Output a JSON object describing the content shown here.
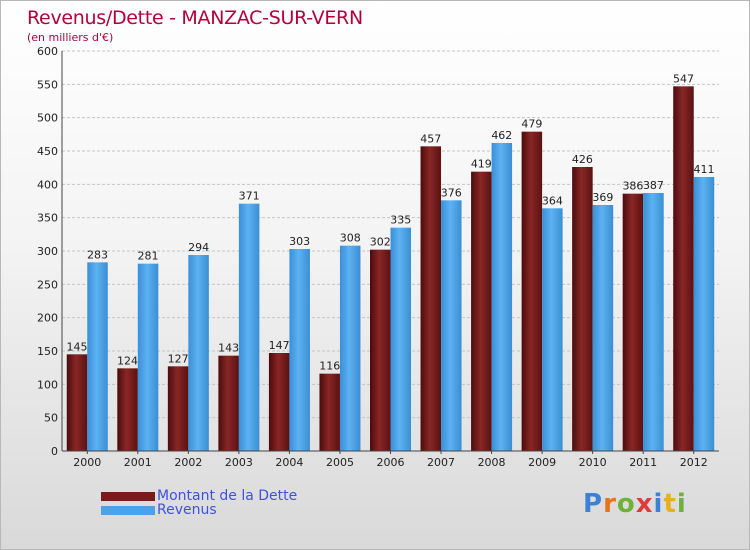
{
  "title": "Revenus/Dette - MANZAC-SUR-VERN",
  "subtitle": "(en milliers d'€)",
  "colors": {
    "dette": "#7a1a1a",
    "revenus": "#4aa3e8",
    "title": "#b3003a",
    "legend_text": "#3f51e0"
  },
  "legend": [
    {
      "name": "Montant de la Dette",
      "color": "#7a1a1a"
    },
    {
      "name": "Revenus",
      "color": "#4aa3e8"
    }
  ],
  "logo": {
    "text": "Proxiti"
  },
  "chart_data": {
    "type": "bar",
    "title": "Revenus/Dette - MANZAC-SUR-VERN",
    "subtitle": "(en milliers d'€)",
    "xlabel": "",
    "ylabel": "",
    "ylim": [
      0,
      600
    ],
    "yticks": [
      0,
      50,
      100,
      150,
      200,
      250,
      300,
      350,
      400,
      450,
      500,
      550,
      600
    ],
    "grid": true,
    "legend_position": "bottom-left",
    "categories": [
      "2000",
      "2001",
      "2002",
      "2003",
      "2004",
      "2005",
      "2006",
      "2007",
      "2008",
      "2009",
      "2010",
      "2011",
      "2012"
    ],
    "series": [
      {
        "name": "Montant de la Dette",
        "values": [
          145,
          124,
          127,
          143,
          147,
          116,
          302,
          457,
          419,
          479,
          426,
          386,
          547
        ]
      },
      {
        "name": "Revenus",
        "values": [
          283,
          281,
          294,
          371,
          303,
          308,
          335,
          376,
          462,
          364,
          369,
          387,
          411
        ]
      }
    ]
  }
}
